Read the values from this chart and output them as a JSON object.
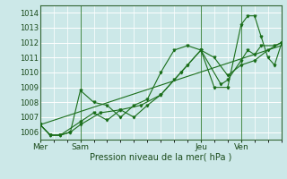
{
  "bg_color": "#cce8e8",
  "grid_color": "#ffffff",
  "line_color": "#1a6e1a",
  "xlabel": "Pression niveau de la mer( hPa )",
  "ylim": [
    1005.5,
    1014.5
  ],
  "yticks": [
    1006,
    1007,
    1008,
    1009,
    1010,
    1011,
    1012,
    1013,
    1014
  ],
  "xtick_labels": [
    "Mer",
    "Sam",
    "Jeu",
    "Ven"
  ],
  "xtick_positions": [
    0,
    12,
    48,
    60
  ],
  "xlim": [
    0,
    72
  ],
  "series1_x": [
    0,
    3,
    6,
    9,
    12,
    16,
    20,
    24,
    28,
    32,
    36,
    40,
    44,
    48,
    52,
    56,
    60,
    62,
    64,
    66,
    68,
    70,
    72
  ],
  "series1_y": [
    1006.5,
    1005.8,
    1005.8,
    1006.0,
    1008.8,
    1008.0,
    1007.8,
    1007.0,
    1007.8,
    1008.2,
    1010.0,
    1011.5,
    1011.8,
    1011.5,
    1009.0,
    1009.0,
    1013.2,
    1013.8,
    1013.8,
    1012.4,
    1011.0,
    1010.5,
    1011.9
  ],
  "series2_x": [
    0,
    3,
    6,
    9,
    12,
    18,
    24,
    30,
    36,
    42,
    48,
    54,
    56,
    60,
    62,
    64,
    66,
    70,
    72
  ],
  "series2_y": [
    1006.5,
    1005.8,
    1005.8,
    1006.0,
    1006.5,
    1007.3,
    1007.5,
    1007.8,
    1008.5,
    1010.0,
    1011.5,
    1009.2,
    1009.5,
    1010.8,
    1011.5,
    1011.2,
    1011.8,
    1011.8,
    1012.0
  ],
  "series3_x": [
    0,
    3,
    6,
    12,
    16,
    20,
    24,
    28,
    32,
    36,
    40,
    44,
    48,
    52,
    56,
    60,
    64,
    68,
    72
  ],
  "series3_y": [
    1006.5,
    1005.8,
    1005.8,
    1006.7,
    1007.3,
    1006.8,
    1007.5,
    1007.0,
    1007.8,
    1008.5,
    1009.5,
    1010.5,
    1011.5,
    1011.0,
    1009.8,
    1010.5,
    1010.8,
    1011.5,
    1012.0
  ],
  "trend_x": [
    0,
    72
  ],
  "trend_y": [
    1006.5,
    1011.8
  ]
}
